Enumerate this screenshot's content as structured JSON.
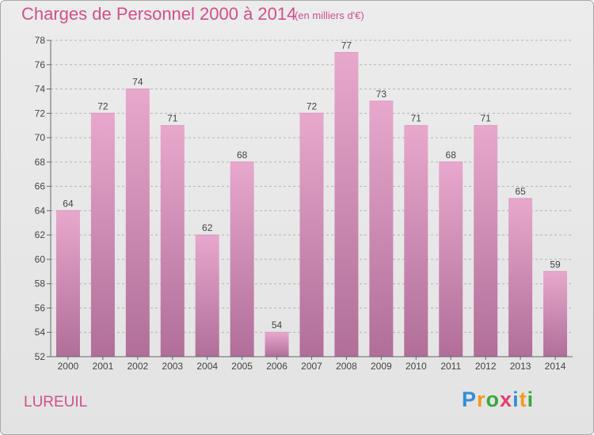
{
  "title": "Charges de Personnel 2000 à 2014",
  "subtitle": "(en milliers d'€)",
  "commune": "LUREUIL",
  "logo": {
    "text": "Proxiti",
    "letters": [
      {
        "ch": "P",
        "color": "#2f8fd8"
      },
      {
        "ch": "r",
        "color": "#f09a1c"
      },
      {
        "ch": "o",
        "color": "#3aa63f"
      },
      {
        "ch": "x",
        "color": "#e23f6d"
      },
      {
        "ch": "i",
        "color": "#2f8fd8"
      },
      {
        "ch": "t",
        "color": "#f09a1c"
      },
      {
        "ch": "i",
        "color": "#3aa63f"
      }
    ]
  },
  "colors": {
    "title": "#d0508d",
    "bar_top": "#e8a8cc",
    "bar_bottom": "#b06e99",
    "grid": "#b4b4b4"
  },
  "chart_data": {
    "type": "bar",
    "categories": [
      "2000",
      "2001",
      "2002",
      "2003",
      "2004",
      "2005",
      "2006",
      "2007",
      "2008",
      "2009",
      "2010",
      "2011",
      "2012",
      "2013",
      "2014"
    ],
    "values": [
      64,
      72,
      74,
      71,
      62,
      68,
      54,
      72,
      77,
      73,
      71,
      68,
      71,
      65,
      59
    ],
    "ylim": [
      52,
      78
    ],
    "yticks": [
      52,
      54,
      56,
      58,
      60,
      62,
      64,
      66,
      68,
      70,
      72,
      74,
      76,
      78
    ],
    "grid": true,
    "data_labels": true
  }
}
